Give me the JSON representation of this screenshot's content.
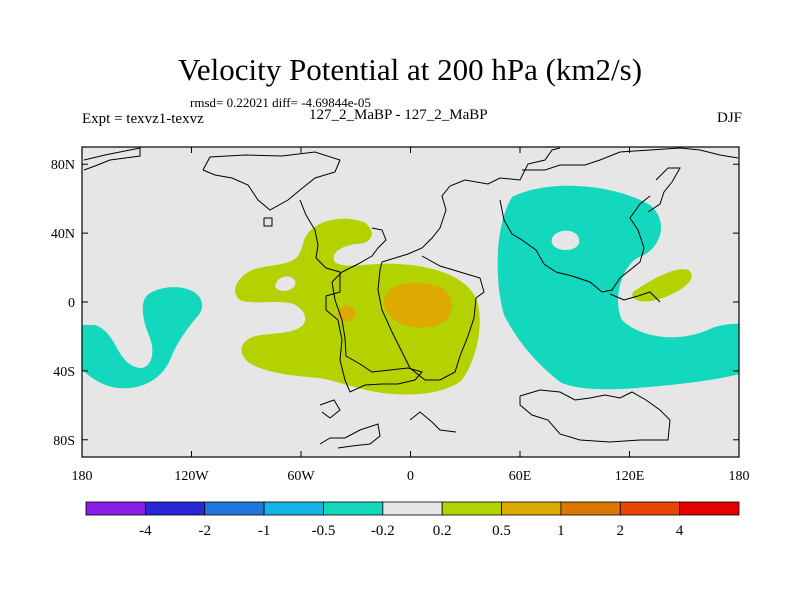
{
  "title": "Velocity Potential at 200 hPa (km2/s)",
  "stats": "rmsd= 0.22021 diff= -4.69844e-05",
  "left_label": "Expt = texvz1-texvz",
  "center_label": "127_2_MaBP - 127_2_MaBP",
  "right_label": "DJF",
  "map": {
    "lon_ticks": [
      {
        "value": -180,
        "label": "180"
      },
      {
        "value": -120,
        "label": "120W"
      },
      {
        "value": -60,
        "label": "60W"
      },
      {
        "value": 0,
        "label": "0"
      },
      {
        "value": 60,
        "label": "60E"
      },
      {
        "value": 120,
        "label": "120E"
      },
      {
        "value": 180,
        "label": "180"
      }
    ],
    "lat_ticks": [
      {
        "value": 80,
        "label": "80N"
      },
      {
        "value": 40,
        "label": "40N"
      },
      {
        "value": 0,
        "label": "0"
      },
      {
        "value": -40,
        "label": "40S"
      },
      {
        "value": -80,
        "label": "80S"
      }
    ],
    "background_color": "#e6e6e6"
  },
  "colorbar": {
    "colors": [
      "#8a1ee6",
      "#2828d8",
      "#1e78dc",
      "#14b4e6",
      "#14d8be",
      "#e6e6e6",
      "#b4d200",
      "#dcaa00",
      "#dc7800",
      "#e64600",
      "#e60000"
    ],
    "labels": [
      "-4",
      "-2",
      "-1",
      "-0.5",
      "-0.2",
      "0.2",
      "0.5",
      "1",
      "2",
      "4"
    ]
  }
}
